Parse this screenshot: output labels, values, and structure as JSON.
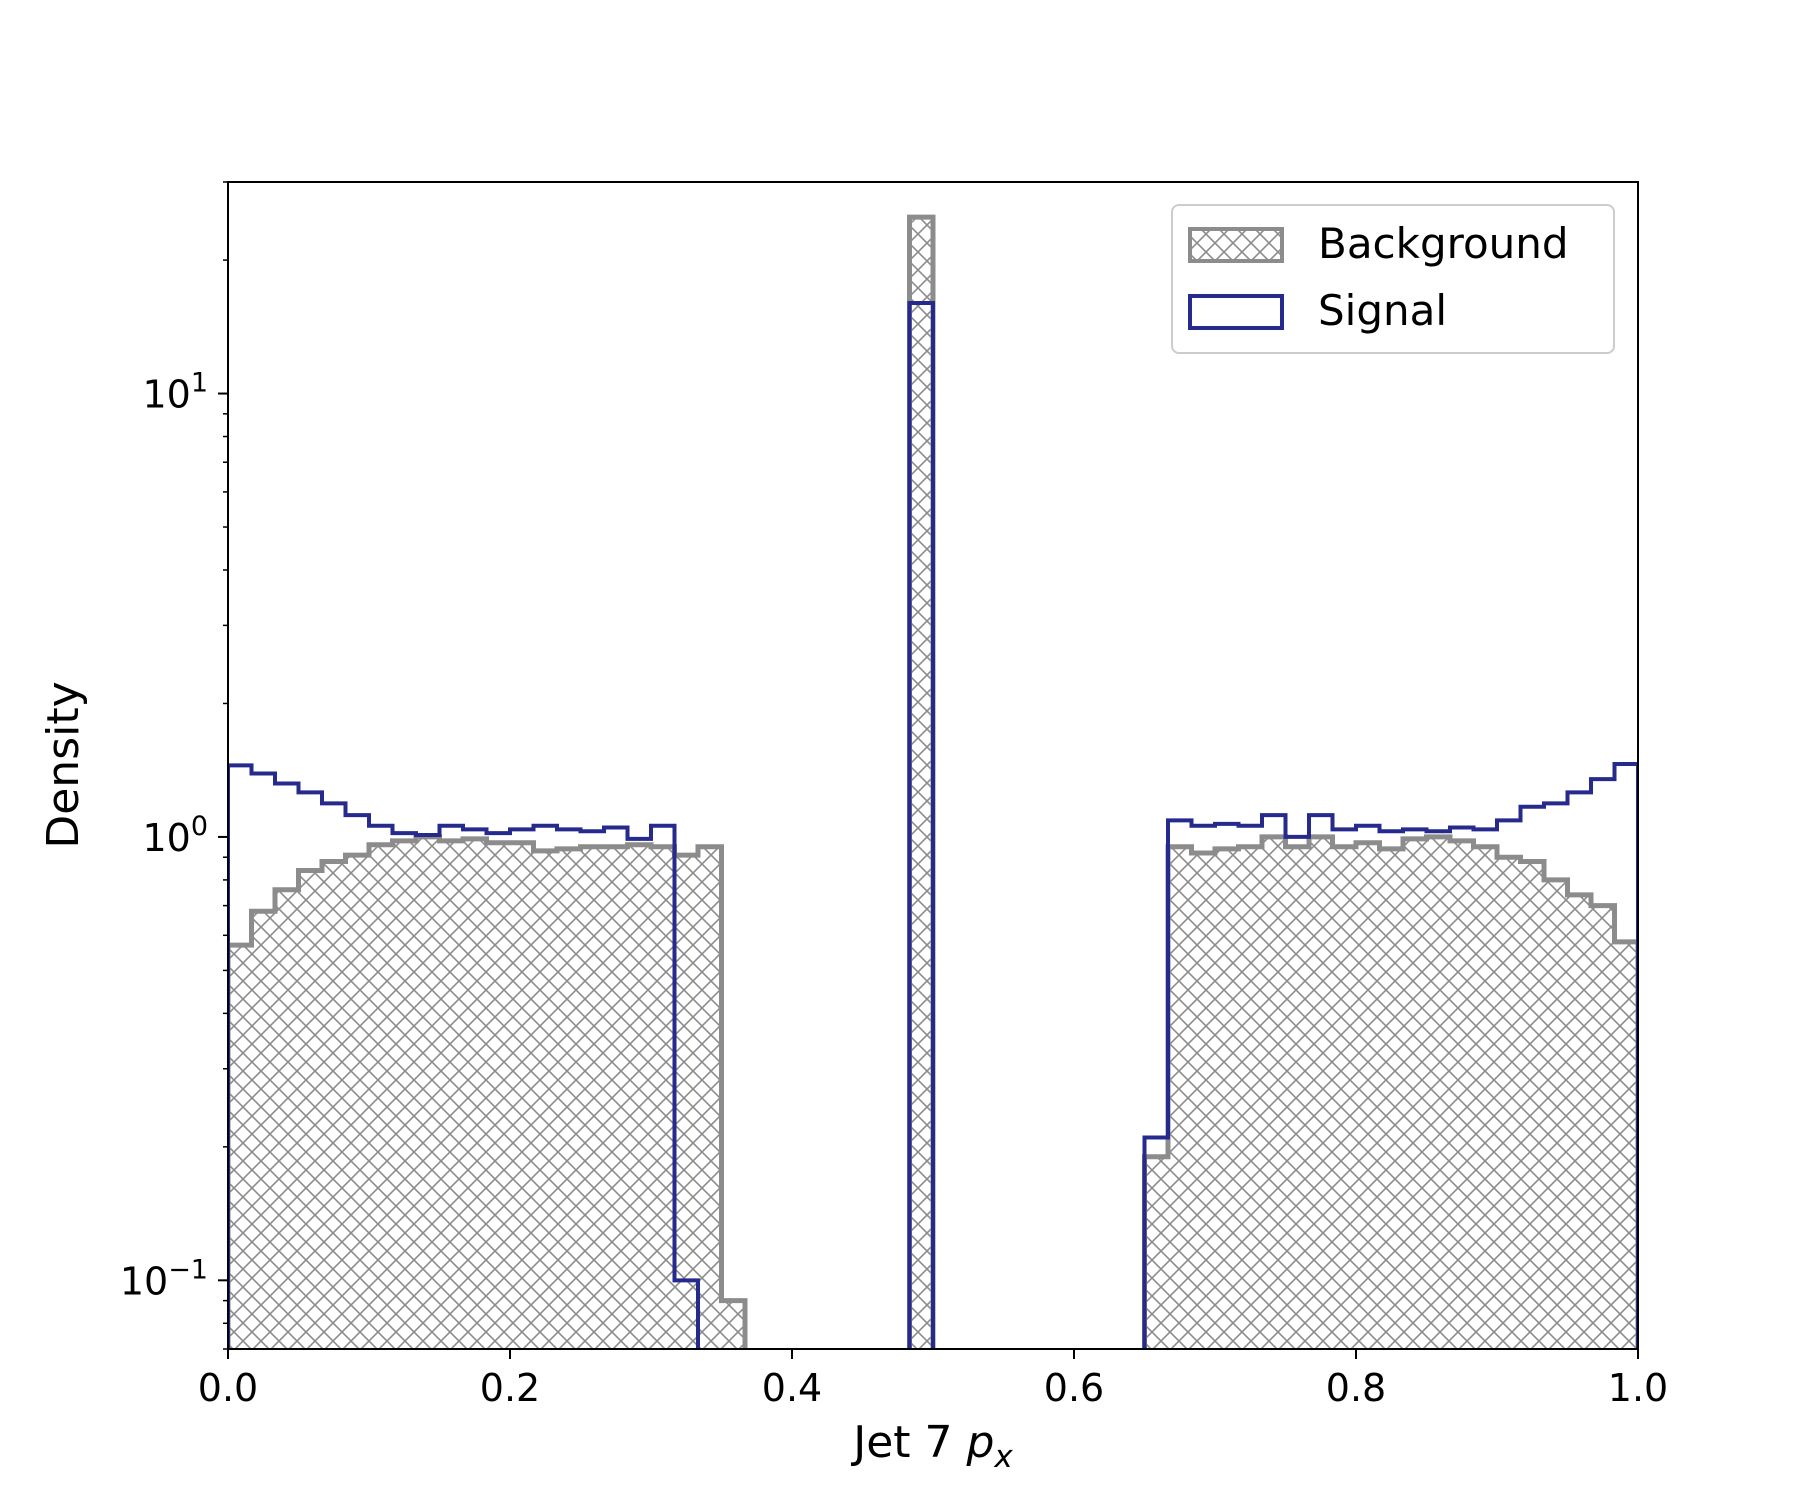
{
  "chart_data": {
    "type": "histogram",
    "title": "",
    "xlabel": "Jet 7 p_x",
    "xlabel_parts": {
      "prefix": "Jet 7 ",
      "var": "p",
      "sub": "x"
    },
    "ylabel": "Density",
    "xlim": [
      0.0,
      1.0
    ],
    "ylim": [
      0.07,
      30
    ],
    "yscale": "log",
    "grid": false,
    "legend_position": "upper right",
    "xticks": [
      {
        "value": 0.0,
        "label": "0.0"
      },
      {
        "value": 0.2,
        "label": "0.2"
      },
      {
        "value": 0.4,
        "label": "0.4"
      },
      {
        "value": 0.6,
        "label": "0.6"
      },
      {
        "value": 0.8,
        "label": "0.8"
      },
      {
        "value": 1.0,
        "label": "1.0"
      }
    ],
    "yticks": [
      {
        "value": 0.1,
        "base": "10",
        "exp": "−1"
      },
      {
        "value": 1,
        "base": "10",
        "exp": "0"
      },
      {
        "value": 10,
        "base": "10",
        "exp": "1"
      }
    ],
    "bin_width": 0.01667,
    "bin_starts": [
      0,
      0.01667,
      0.03333,
      0.05,
      0.06667,
      0.08333,
      0.1,
      0.11667,
      0.13333,
      0.15,
      0.16667,
      0.18333,
      0.2,
      0.21667,
      0.23333,
      0.25,
      0.26667,
      0.28333,
      0.3,
      0.31667,
      0.33333,
      0.35,
      0.36667,
      0.38333,
      0.4,
      0.41667,
      0.43333,
      0.45,
      0.46667,
      0.48333,
      0.5,
      0.51667,
      0.53333,
      0.55,
      0.56667,
      0.58333,
      0.6,
      0.61667,
      0.63333,
      0.65,
      0.66667,
      0.68333,
      0.7,
      0.71667,
      0.73333,
      0.75,
      0.76667,
      0.78333,
      0.8,
      0.81667,
      0.83333,
      0.85,
      0.86667,
      0.88333,
      0.9,
      0.91667,
      0.93333,
      0.95,
      0.96667,
      0.98333
    ],
    "series": [
      {
        "name": "Background",
        "style": "hatched-filled",
        "color": "#8c8c8c",
        "values": [
          0.57,
          0.68,
          0.76,
          0.84,
          0.88,
          0.91,
          0.96,
          0.98,
          1.0,
          0.98,
          0.99,
          0.97,
          0.97,
          0.93,
          0.94,
          0.95,
          0.95,
          0.96,
          0.95,
          0.91,
          0.95,
          0.09,
          0,
          0,
          0,
          0,
          0,
          0,
          0,
          25.0,
          0,
          0,
          0,
          0,
          0,
          0,
          0,
          0,
          0,
          0.19,
          0.95,
          0.92,
          0.94,
          0.95,
          1.0,
          0.95,
          1.0,
          0.95,
          0.97,
          0.94,
          0.99,
          1.0,
          0.98,
          0.95,
          0.9,
          0.88,
          0.8,
          0.74,
          0.7,
          0.58
        ]
      },
      {
        "name": "Signal",
        "style": "step-outline",
        "color": "#262a8c",
        "values": [
          1.45,
          1.39,
          1.32,
          1.26,
          1.19,
          1.12,
          1.06,
          1.02,
          1.01,
          1.06,
          1.04,
          1.02,
          1.04,
          1.06,
          1.04,
          1.03,
          1.05,
          0.99,
          1.06,
          0.1,
          0,
          0,
          0,
          0,
          0,
          0,
          0,
          0,
          0,
          16.0,
          0,
          0,
          0,
          0,
          0,
          0,
          0,
          0,
          0,
          0.21,
          1.09,
          1.06,
          1.07,
          1.06,
          1.12,
          1.0,
          1.12,
          1.04,
          1.06,
          1.03,
          1.04,
          1.03,
          1.05,
          1.04,
          1.09,
          1.17,
          1.19,
          1.26,
          1.35,
          1.46
        ]
      }
    ]
  }
}
